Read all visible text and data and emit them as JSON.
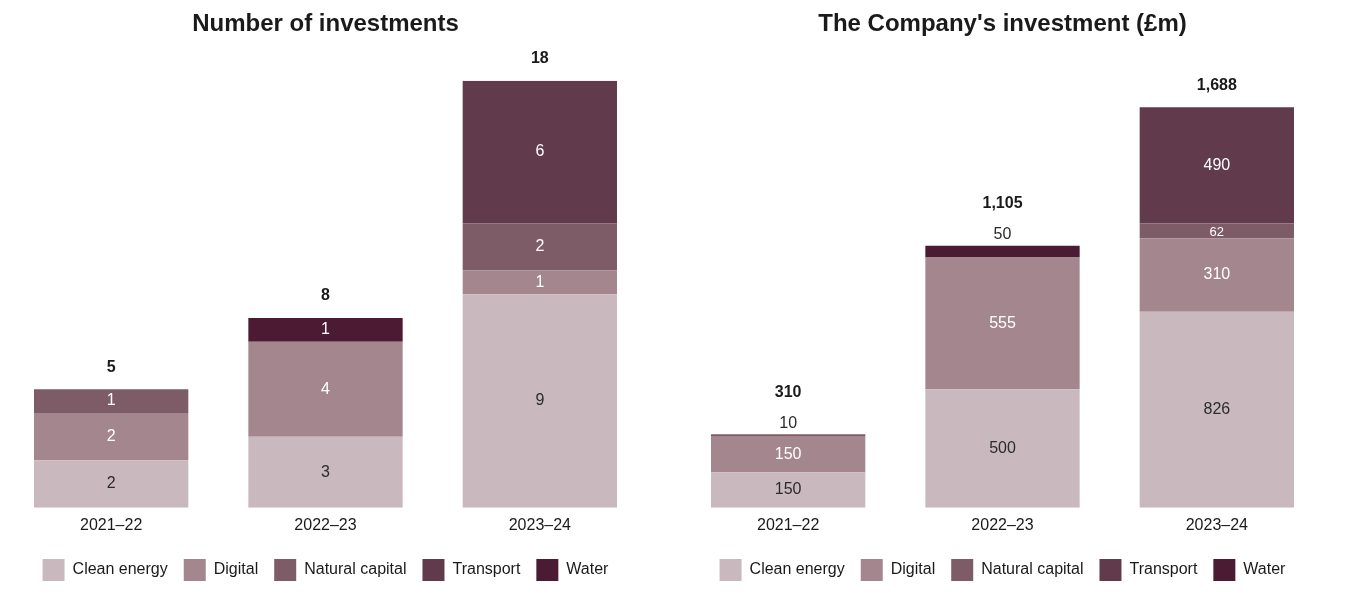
{
  "chart_data": [
    {
      "type": "bar",
      "title": "Number of investments",
      "categories": [
        "2021–22",
        "2022–23",
        "2023–24"
      ],
      "stacked": true,
      "data_labels": true,
      "tick_labels": "x",
      "grid": false,
      "legend": "bottom",
      "totals": [
        "5",
        "8",
        "18"
      ],
      "series": [
        {
          "name": "Clean energy",
          "color": "#c9b9be",
          "values": [
            2,
            3,
            9
          ]
        },
        {
          "name": "Digital",
          "color": "#a4868e",
          "values": [
            2,
            4,
            1
          ]
        },
        {
          "name": "Natural capital",
          "color": "#7e5c67",
          "values": [
            1,
            null,
            2
          ]
        },
        {
          "name": "Transport",
          "color": "#613a4c",
          "values": [
            null,
            null,
            6
          ]
        },
        {
          "name": "Water",
          "color": "#4b1a33",
          "values": [
            null,
            1,
            null
          ]
        }
      ]
    },
    {
      "type": "bar",
      "title": "The Company's investment (£m)",
      "categories": [
        "2021–22",
        "2022–23",
        "2023–24"
      ],
      "stacked": true,
      "data_labels": true,
      "tick_labels": "x",
      "grid": false,
      "legend": "bottom",
      "totals": [
        "310",
        "1,105",
        "1,688"
      ],
      "series": [
        {
          "name": "Clean energy",
          "color": "#c9b9be",
          "values": [
            150,
            500,
            826
          ]
        },
        {
          "name": "Digital",
          "color": "#a4868e",
          "values": [
            150,
            555,
            310
          ]
        },
        {
          "name": "Natural capital",
          "color": "#7e5c67",
          "values": [
            10,
            null,
            62
          ]
        },
        {
          "name": "Transport",
          "color": "#613a4c",
          "values": [
            null,
            null,
            490
          ]
        },
        {
          "name": "Water",
          "color": "#4b1a33",
          "values": [
            null,
            50,
            null
          ]
        }
      ]
    }
  ]
}
